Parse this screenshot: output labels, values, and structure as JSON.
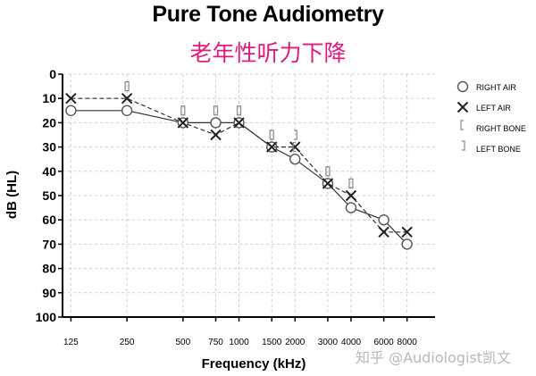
{
  "chart_data": {
    "type": "line",
    "title": "Pure Tone Audiometry",
    "subtitle": "老年性听力下降",
    "xlabel": "Frequency (kHz)",
    "ylabel": "dB (HL)",
    "ylim": [
      0,
      100
    ],
    "y_reversed": true,
    "x_scale": "log",
    "grid": true,
    "legend_position": "right",
    "x_ticks": [
      125,
      250,
      500,
      750,
      1000,
      1500,
      2000,
      3000,
      4000,
      6000,
      8000
    ],
    "y_ticks": [
      0,
      10,
      20,
      30,
      40,
      50,
      60,
      70,
      80,
      90,
      100
    ],
    "series": [
      {
        "name": "RIGHT AIR",
        "marker": "circle",
        "line": "solid",
        "x": [
          125,
          250,
          500,
          750,
          1000,
          1500,
          2000,
          3000,
          4000,
          6000,
          8000
        ],
        "y": [
          15,
          15,
          20,
          20,
          20,
          30,
          35,
          45,
          55,
          60,
          70
        ]
      },
      {
        "name": "LEFT AIR",
        "marker": "x",
        "line": "dashed",
        "x": [
          125,
          250,
          500,
          750,
          1000,
          1500,
          2000,
          3000,
          4000,
          6000,
          8000
        ],
        "y": [
          10,
          10,
          20,
          25,
          20,
          30,
          30,
          45,
          50,
          65,
          65
        ]
      },
      {
        "name": "RIGHT BONE",
        "marker": "[",
        "x": [
          250,
          500,
          750,
          1000,
          1500,
          2000,
          3000,
          4000
        ],
        "y": [
          5,
          15,
          15,
          15,
          25,
          30,
          40,
          45
        ]
      },
      {
        "name": "LEFT BONE",
        "marker": "]",
        "x": [
          250,
          500,
          750,
          1000,
          1500,
          2000,
          3000,
          4000
        ],
        "y": [
          5,
          15,
          15,
          15,
          25,
          25,
          40,
          45
        ]
      }
    ]
  },
  "watermark": "知乎 @Audiologist凯文",
  "colors": {
    "axis": "#000000",
    "grid": "#d0d0d0",
    "line": "#333333",
    "marker": "#555555",
    "subtitle": "#e0197f"
  }
}
